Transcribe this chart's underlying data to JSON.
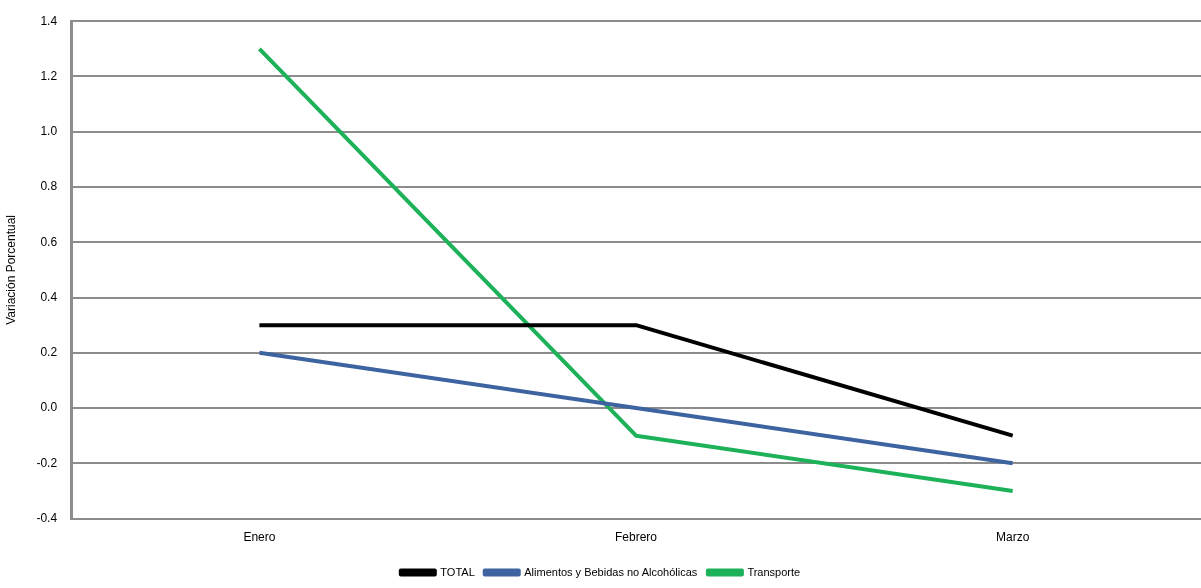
{
  "chart_data": {
    "type": "line",
    "ylabel": "Variación Porcentual",
    "categories": [
      "Enero",
      "Febrero",
      "Marzo"
    ],
    "series": [
      {
        "name": "TOTAL",
        "color": "#000000",
        "values": [
          0.3,
          0.3,
          -0.1
        ]
      },
      {
        "name": "Alimentos y Bebidas no Alcohólicas",
        "color": "#3d64a0",
        "values": [
          0.2,
          0.0,
          -0.2
        ]
      },
      {
        "name": "Transporte",
        "color": "#1db25a",
        "values": [
          1.3,
          -0.1,
          -0.3
        ]
      }
    ],
    "ylim": [
      -0.4,
      1.4
    ],
    "yticks": [
      {
        "value": -0.4,
        "label": "-0.4"
      },
      {
        "value": -0.2,
        "label": "-0.2"
      },
      {
        "value": 0,
        "label": "0.0"
      },
      {
        "value": 0.2,
        "label": "0.2"
      },
      {
        "value": 0.4,
        "label": "0.4"
      },
      {
        "value": 0.6,
        "label": "0.6"
      },
      {
        "value": 0.8,
        "label": "0.8"
      },
      {
        "value": 1,
        "label": "1.0"
      },
      {
        "value": 1.2,
        "label": "1.2"
      },
      {
        "value": 1.4,
        "label": "1.4"
      }
    ],
    "grid": "y",
    "legend": "bottom",
    "marker": "none",
    "line_style": "solid"
  }
}
